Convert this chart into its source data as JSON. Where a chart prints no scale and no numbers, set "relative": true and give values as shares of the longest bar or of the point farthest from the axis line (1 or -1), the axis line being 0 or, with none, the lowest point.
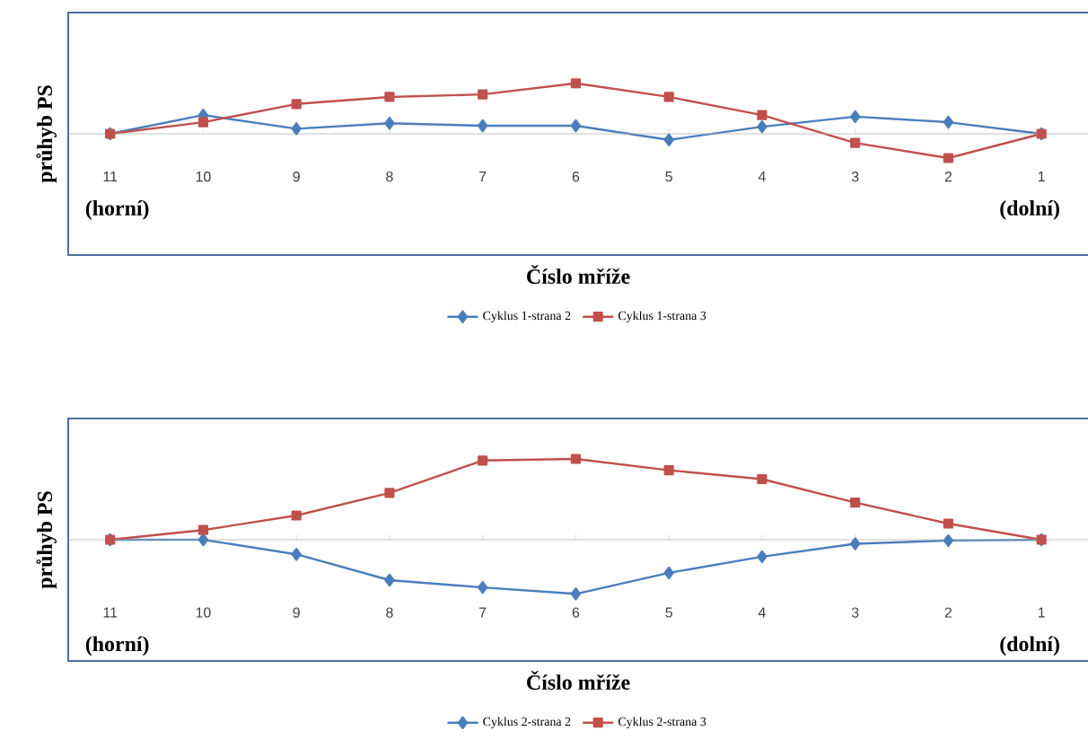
{
  "chart_data": [
    {
      "type": "line",
      "relative": true,
      "xlabel": "Číslo mříže",
      "ylabel": "průhyb PS",
      "categories": [
        "11",
        "10",
        "9",
        "8",
        "7",
        "6",
        "5",
        "4",
        "3",
        "2",
        "1"
      ],
      "legend": "bottom",
      "annotations": [
        "(horní)",
        "(dolní)"
      ],
      "series": [
        {
          "name": "Cyklus 1-strana 2",
          "color": "#4a7ebb",
          "marker": "diamond",
          "values": [
            0,
            0.37,
            0.1,
            0.21,
            0.16,
            0.16,
            -0.12,
            0.14,
            0.34,
            0.23,
            0
          ]
        },
        {
          "name": "Cyklus 1-strana 3",
          "color": "#c0504d",
          "marker": "square",
          "values": [
            0,
            0.23,
            0.59,
            0.73,
            0.78,
            1,
            0.73,
            0.37,
            -0.18,
            -0.48,
            0
          ]
        }
      ]
    },
    {
      "type": "line",
      "relative": true,
      "xlabel": "Číslo mříže",
      "ylabel": "průhyb PS",
      "categories": [
        "11",
        "10",
        "9",
        "8",
        "7",
        "6",
        "5",
        "4",
        "3",
        "2",
        "1"
      ],
      "legend": "bottom",
      "annotations": [
        "(horní)",
        "(dolní)"
      ],
      "series": [
        {
          "name": "Cyklus 2-strana 2",
          "color": "#4a7ebb",
          "marker": "diamond",
          "values": [
            0,
            0,
            -0.18,
            -0.5,
            -0.59,
            -0.67,
            -0.41,
            -0.21,
            -0.05,
            -0.01,
            0
          ]
        },
        {
          "name": "Cyklus 2-strana 3",
          "color": "#c0504d",
          "marker": "square",
          "values": [
            0,
            0.12,
            0.3,
            0.58,
            0.98,
            1,
            0.86,
            0.75,
            0.46,
            0.2,
            0
          ]
        }
      ]
    }
  ]
}
